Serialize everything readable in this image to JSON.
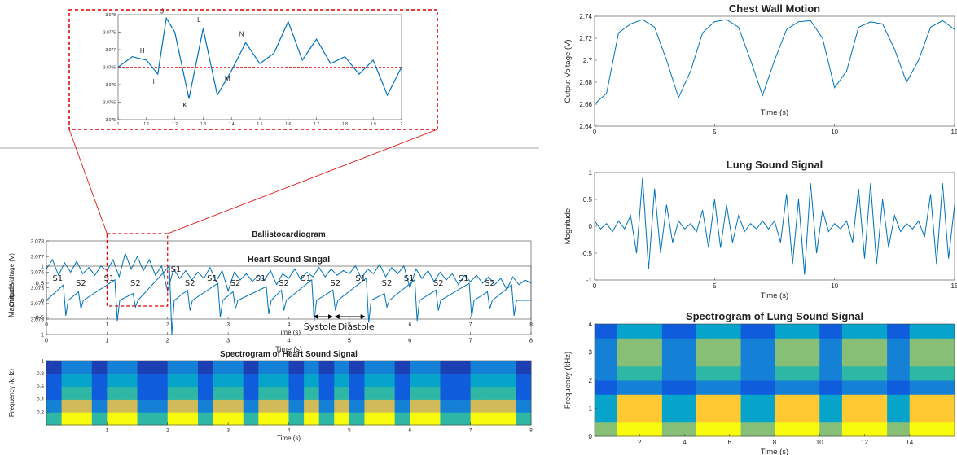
{
  "chart_data": [
    {
      "type": "line",
      "xlim": [
        1,
        2
      ],
      "ylim": [
        3.075,
        3.078
      ],
      "xticks": [
        1,
        1.1,
        1.2,
        1.3,
        1.4,
        1.5,
        1.6,
        1.7,
        1.8,
        1.9,
        2
      ],
      "yticks": [
        3.075,
        3.0755,
        3.076,
        3.0765,
        3.077,
        3.0775,
        3.078
      ],
      "reference_line": 3.0765,
      "reference_color": "#e00000",
      "x": [
        1,
        1.05,
        1.1,
        1.14,
        1.17,
        1.2,
        1.25,
        1.3,
        1.35,
        1.4,
        1.45,
        1.5,
        1.55,
        1.6,
        1.65,
        1.7,
        1.75,
        1.8,
        1.85,
        1.9,
        1.95,
        2
      ],
      "series": [
        {
          "color": "#0072bd",
          "values": [
            3.0765,
            3.0768,
            3.0767,
            3.0763,
            3.0779,
            3.0775,
            3.0756,
            3.0776,
            3.0757,
            3.0764,
            3.0772,
            3.0766,
            3.0769,
            3.0778,
            3.0767,
            3.0773,
            3.0766,
            3.0768,
            3.0763,
            3.0767,
            3.0757,
            3.0765
          ]
        }
      ],
      "annotations": [
        "H",
        "I",
        "J",
        "K",
        "L",
        "M",
        "N"
      ]
    },
    {
      "type": "line",
      "title": "Ballistocardiogram",
      "xlabel": "Time (s)",
      "ylabel": "Output Voltage (V)",
      "xlim": [
        0,
        8
      ],
      "ylim": [
        3.073,
        3.078
      ],
      "xticks": [
        0,
        1,
        2,
        3,
        4,
        5,
        6,
        7,
        8
      ],
      "yticks": [
        3.073,
        3.074,
        3.075,
        3.076,
        3.077,
        3.078
      ],
      "x": [
        0,
        0.1,
        0.2,
        0.3,
        0.4,
        0.5,
        0.6,
        0.7,
        0.8,
        0.9,
        1,
        1.1,
        1.2,
        1.3,
        1.4,
        1.5,
        1.6,
        1.7,
        1.8,
        1.9,
        2,
        2.1,
        2.2,
        2.3,
        2.4,
        2.5,
        2.6,
        2.7,
        2.8,
        2.9,
        3,
        3.1,
        3.2,
        3.3,
        3.4,
        3.5,
        3.6,
        3.7,
        3.8,
        3.9,
        4,
        4.1,
        4.2,
        4.3,
        4.4,
        4.5,
        4.6,
        4.7,
        4.8,
        4.9,
        5,
        5.1,
        5.2,
        5.3,
        5.4,
        5.5,
        5.6,
        5.7,
        5.8,
        5.9,
        6,
        6.1,
        6.2,
        6.3,
        6.4,
        6.5,
        6.6,
        6.7,
        6.8,
        6.9,
        7,
        7.1,
        7.2,
        7.3,
        7.4,
        7.5,
        7.6,
        7.7,
        7.8,
        7.9,
        8
      ],
      "series": [
        {
          "color": "#0072bd",
          "values": [
            3.0762,
            3.0768,
            3.0758,
            3.0766,
            3.076,
            3.0767,
            3.0759,
            3.0763,
            3.0758,
            3.0764,
            3.0761,
            3.0768,
            3.0757,
            3.0772,
            3.0762,
            3.077,
            3.0761,
            3.0768,
            3.0758,
            3.0764,
            3.0748,
            3.0762,
            3.0756,
            3.0761,
            3.0755,
            3.076,
            3.0756,
            3.0763,
            3.0754,
            3.0761,
            3.0748,
            3.076,
            3.0755,
            3.0759,
            3.0754,
            3.0758,
            3.0755,
            3.0761,
            3.0752,
            3.0759,
            3.0756,
            3.0762,
            3.0755,
            3.076,
            3.0757,
            3.0763,
            3.0757,
            3.0762,
            3.0758,
            3.0761,
            3.0759,
            3.0764,
            3.0756,
            3.0762,
            3.0759,
            3.0765,
            3.0757,
            3.0763,
            3.0759,
            3.0764,
            3.075,
            3.0762,
            3.0756,
            3.0761,
            3.0754,
            3.076,
            3.0755,
            3.0759,
            3.0752,
            3.0758,
            3.0754,
            3.0758,
            3.0753,
            3.0757,
            3.0752,
            3.0756,
            3.0749,
            3.0757,
            3.0752,
            3.0755,
            3.0753
          ]
        }
      ]
    },
    {
      "type": "line",
      "title": "Heart Sound Singal",
      "xlabel": "Time (s)",
      "ylabel": "Magnitude",
      "xlim": [
        0,
        8
      ],
      "ylim": [
        -1,
        1
      ],
      "xticks": [
        0,
        1,
        2,
        3,
        4,
        5,
        6,
        7,
        8
      ],
      "yticks": [
        -1,
        -0.5,
        0,
        0.5,
        1
      ],
      "x": [
        0,
        0.28,
        0.32,
        0.36,
        0.53,
        0.57,
        0.61,
        1.13,
        1.17,
        1.21,
        1.43,
        1.47,
        1.51,
        2.03,
        2.07,
        2.11,
        2.33,
        2.37,
        2.41,
        2.83,
        2.87,
        2.91,
        3.08,
        3.12,
        3.16,
        3.63,
        3.67,
        3.71,
        3.88,
        3.92,
        3.96,
        4.38,
        4.42,
        4.46,
        4.73,
        4.77,
        4.81,
        5.28,
        5.32,
        5.36,
        5.58,
        5.62,
        5.66,
        6.08,
        6.12,
        6.16,
        6.43,
        6.47,
        6.51,
        6.98,
        7.02,
        7.06,
        7.28,
        7.32,
        7.36,
        7.68,
        7.72,
        7.76,
        8
      ],
      "series": [
        {
          "color": "#0072bd",
          "values": [
            0,
            0.45,
            -0.45,
            0,
            0.25,
            -0.25,
            0,
            0.6,
            -0.6,
            0,
            0.2,
            -0.2,
            0,
            1,
            -1,
            0,
            0.3,
            -0.3,
            0,
            0.5,
            -0.5,
            0,
            0.25,
            -0.25,
            0,
            0.4,
            -0.4,
            0,
            0.3,
            -0.3,
            0,
            0.6,
            -0.6,
            0,
            0.3,
            -0.3,
            0,
            0.65,
            -0.65,
            0,
            0.2,
            -0.2,
            0,
            0.6,
            -0.6,
            0,
            0.3,
            -0.3,
            0,
            0.5,
            -0.5,
            0,
            0.25,
            -0.25,
            0,
            0.45,
            -0.45,
            0,
            0
          ]
        }
      ],
      "annotations": [
        "S1",
        "S2",
        "S1",
        "S2",
        "S1",
        "S2",
        "S1",
        "S2",
        "S1",
        "S2",
        "S1",
        "S2",
        "S1",
        "S2",
        "S1",
        "S2",
        "S1",
        "S2",
        "Systole",
        "Diastole"
      ]
    },
    {
      "type": "heatmap",
      "title": "Spectrogram of Heart Sound Signal",
      "xlabel": "Time (s)",
      "ylabel": "Frequency (kHz)",
      "xlim": [
        0,
        8
      ],
      "ylim": [
        0,
        1
      ],
      "xticks": [
        1,
        2,
        3,
        4,
        5,
        6,
        7,
        8
      ],
      "yticks": [
        0.2,
        0.4,
        0.6,
        0.8,
        1
      ],
      "zlim": [
        0,
        9
      ],
      "colormap": [
        "#352a87",
        "#1d3fb4",
        "#0f5cdd",
        "#1481d6",
        "#06a4ca",
        "#2eb7a4",
        "#87bf77",
        "#d1bb59",
        "#fec832",
        "#f9fb0e"
      ],
      "z": [
        [
          5,
          9,
          9,
          5,
          9,
          9,
          5,
          5,
          9,
          9,
          5,
          9,
          9,
          5,
          9,
          9,
          5,
          9,
          5,
          9,
          5,
          9,
          9,
          5,
          9,
          9,
          5,
          5,
          9,
          9,
          9,
          5
        ],
        [
          3,
          7,
          7,
          3,
          7,
          7,
          3,
          3,
          7,
          7,
          3,
          7,
          7,
          3,
          7,
          7,
          3,
          7,
          3,
          7,
          3,
          7,
          7,
          3,
          7,
          7,
          3,
          3,
          7,
          7,
          7,
          3
        ],
        [
          2,
          5,
          5,
          2,
          5,
          5,
          2,
          2,
          5,
          5,
          2,
          5,
          5,
          2,
          5,
          5,
          2,
          5,
          2,
          5,
          2,
          5,
          5,
          2,
          5,
          5,
          2,
          2,
          5,
          5,
          5,
          2
        ],
        [
          2,
          4,
          4,
          2,
          4,
          4,
          2,
          2,
          4,
          4,
          2,
          4,
          4,
          2,
          4,
          4,
          2,
          4,
          2,
          4,
          2,
          4,
          4,
          2,
          4,
          4,
          2,
          2,
          4,
          4,
          4,
          2
        ],
        [
          1,
          3,
          3,
          1,
          3,
          3,
          1,
          1,
          3,
          3,
          1,
          3,
          3,
          1,
          3,
          3,
          1,
          3,
          1,
          3,
          1,
          3,
          3,
          1,
          3,
          3,
          1,
          1,
          3,
          3,
          3,
          1
        ]
      ]
    },
    {
      "type": "line",
      "title": "Chest Wall Motion",
      "xlabel": "Time (s)",
      "ylabel": "Output Voltage (V)",
      "xlim": [
        0,
        15
      ],
      "ylim": [
        2.64,
        2.74
      ],
      "xticks": [
        0,
        5,
        10,
        15
      ],
      "yticks": [
        2.64,
        2.66,
        2.68,
        2.7,
        2.72,
        2.74
      ],
      "x": [
        0,
        0.5,
        1,
        1.5,
        2,
        2.5,
        3,
        3.5,
        4,
        4.5,
        5,
        5.5,
        6,
        6.5,
        7,
        7.5,
        8,
        8.5,
        9,
        9.5,
        10,
        10.5,
        11,
        11.5,
        12,
        12.5,
        13,
        13.5,
        14,
        14.5,
        15
      ],
      "series": [
        {
          "color": "#0072bd",
          "values": [
            2.66,
            2.67,
            2.725,
            2.733,
            2.737,
            2.73,
            2.7,
            2.666,
            2.69,
            2.725,
            2.735,
            2.737,
            2.73,
            2.7,
            2.668,
            2.7,
            2.728,
            2.735,
            2.736,
            2.72,
            2.675,
            2.69,
            2.73,
            2.735,
            2.733,
            2.71,
            2.68,
            2.7,
            2.73,
            2.736,
            2.728
          ]
        }
      ]
    },
    {
      "type": "line",
      "title": "Lung Sound Signal",
      "xlabel": "Time (s)",
      "ylabel": "Magnitude",
      "xlim": [
        0,
        15
      ],
      "ylim": [
        -1,
        1
      ],
      "xticks": [
        0,
        5,
        10,
        15
      ],
      "yticks": [
        -1,
        -0.5,
        0,
        0.5,
        1
      ],
      "x": [
        0,
        0.25,
        0.5,
        0.75,
        1,
        1.25,
        1.5,
        1.75,
        2,
        2.25,
        2.5,
        2.75,
        3,
        3.25,
        3.5,
        3.75,
        4,
        4.25,
        4.5,
        4.75,
        5,
        5.25,
        5.5,
        5.75,
        6,
        6.25,
        6.5,
        6.75,
        7,
        7.25,
        7.5,
        7.75,
        8,
        8.25,
        8.5,
        8.75,
        9,
        9.25,
        9.5,
        9.75,
        10,
        10.25,
        10.5,
        10.75,
        11,
        11.25,
        11.5,
        11.75,
        12,
        12.25,
        12.5,
        12.75,
        13,
        13.25,
        13.5,
        13.75,
        14,
        14.25,
        14.5,
        14.75,
        15
      ],
      "series": [
        {
          "color": "#0072bd",
          "values": [
            0.1,
            -0.05,
            0.05,
            -0.1,
            0.1,
            -0.05,
            0.2,
            -0.5,
            0.9,
            -0.8,
            0.7,
            -0.5,
            0.4,
            -0.3,
            0.1,
            -0.05,
            0.05,
            -0.1,
            0.3,
            -0.4,
            0.5,
            -0.4,
            0.4,
            -0.3,
            0.2,
            -0.1,
            0.05,
            -0.05,
            0.1,
            -0.05,
            0.1,
            -0.3,
            0.6,
            -0.7,
            0.5,
            -0.9,
            0.8,
            -0.5,
            0.3,
            -0.1,
            0.05,
            -0.05,
            0.1,
            -0.3,
            0.7,
            -0.6,
            0.8,
            -0.7,
            0.5,
            -0.4,
            0.2,
            -0.1,
            0.05,
            -0.05,
            0.1,
            -0.2,
            0.6,
            -0.7,
            0.8,
            -0.6,
            0.4
          ]
        }
      ]
    },
    {
      "type": "heatmap",
      "title": "Spectrogram of Lung Sound Signal",
      "xlabel": "Time (s)",
      "ylabel": "Frequency (kHz)",
      "xlim": [
        0,
        16
      ],
      "ylim": [
        0,
        4
      ],
      "xticks": [
        2,
        4,
        6,
        8,
        10,
        12,
        14
      ],
      "yticks": [
        0,
        1,
        2,
        3,
        4
      ],
      "zlim": [
        0,
        9
      ],
      "colormap": [
        "#352a87",
        "#1d3fb4",
        "#0f5cdd",
        "#1481d6",
        "#06a4ca",
        "#2eb7a4",
        "#87bf77",
        "#d1bb59",
        "#fec832",
        "#f9fb0e"
      ],
      "z": [
        [
          6,
          6,
          9,
          9,
          9,
          9,
          6,
          6,
          6,
          9,
          9,
          9,
          9,
          6,
          6,
          6,
          9,
          9,
          9,
          9,
          6,
          6,
          9,
          9,
          9,
          9,
          6,
          6,
          9,
          9,
          9,
          9
        ],
        [
          4,
          4,
          8,
          8,
          8,
          8,
          4,
          4,
          4,
          8,
          8,
          8,
          8,
          4,
          4,
          4,
          8,
          8,
          8,
          8,
          4,
          4,
          8,
          8,
          8,
          8,
          4,
          4,
          8,
          8,
          8,
          8
        ],
        [
          4,
          4,
          8,
          8,
          8,
          8,
          4,
          4,
          4,
          8,
          8,
          8,
          8,
          4,
          4,
          4,
          8,
          8,
          8,
          8,
          4,
          4,
          8,
          8,
          8,
          8,
          4,
          4,
          8,
          8,
          8,
          8
        ],
        [
          2,
          2,
          3,
          3,
          3,
          3,
          2,
          2,
          2,
          3,
          3,
          3,
          3,
          2,
          2,
          2,
          3,
          3,
          3,
          3,
          2,
          2,
          3,
          3,
          3,
          3,
          2,
          2,
          3,
          3,
          3,
          3
        ],
        [
          3,
          3,
          5,
          5,
          5,
          5,
          3,
          3,
          3,
          5,
          5,
          5,
          5,
          3,
          3,
          3,
          5,
          5,
          5,
          5,
          3,
          3,
          5,
          5,
          5,
          5,
          3,
          3,
          5,
          5,
          5,
          5
        ],
        [
          3,
          3,
          6,
          6,
          6,
          6,
          3,
          3,
          3,
          6,
          6,
          6,
          6,
          3,
          3,
          3,
          6,
          6,
          6,
          6,
          3,
          3,
          6,
          6,
          6,
          6,
          3,
          3,
          6,
          6,
          6,
          6
        ],
        [
          3,
          3,
          6,
          6,
          6,
          6,
          3,
          3,
          3,
          6,
          6,
          6,
          6,
          3,
          3,
          3,
          6,
          6,
          6,
          6,
          3,
          3,
          6,
          6,
          6,
          6,
          3,
          3,
          6,
          6,
          6,
          6
        ],
        [
          2,
          2,
          4,
          4,
          4,
          4,
          2,
          2,
          2,
          4,
          4,
          4,
          4,
          2,
          2,
          2,
          4,
          4,
          4,
          4,
          2,
          2,
          4,
          4,
          4,
          4,
          2,
          2,
          4,
          4,
          4,
          4
        ]
      ]
    }
  ]
}
